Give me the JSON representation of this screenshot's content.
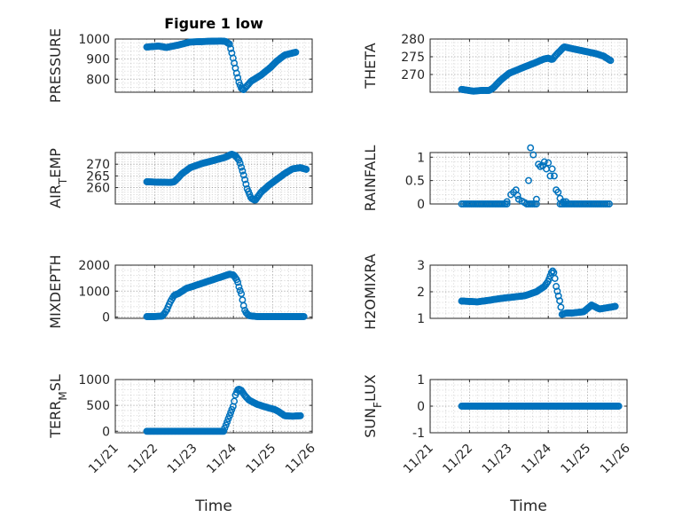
{
  "chart_data": [
    {
      "type": "scatter",
      "title": "Figure 1 low",
      "ylabel": "PRESSURE",
      "ylim": [
        735,
        1000
      ],
      "yticks": [
        800,
        900,
        1000
      ],
      "xlim": [
        0,
        5
      ],
      "keyframes": [
        [
          0.8,
          960
        ],
        [
          1.1,
          965
        ],
        [
          1.3,
          958
        ],
        [
          1.6,
          970
        ],
        [
          1.9,
          985
        ],
        [
          2.3,
          988
        ],
        [
          2.7,
          990
        ],
        [
          2.8,
          988
        ],
        [
          2.9,
          975
        ],
        [
          2.96,
          930
        ],
        [
          3.02,
          880
        ],
        [
          3.08,
          830
        ],
        [
          3.14,
          785
        ],
        [
          3.2,
          755
        ],
        [
          3.26,
          748
        ],
        [
          3.45,
          790
        ],
        [
          3.7,
          820
        ],
        [
          3.95,
          860
        ],
        [
          4.1,
          890
        ],
        [
          4.3,
          920
        ],
        [
          4.6,
          935
        ]
      ]
    },
    {
      "type": "scatter",
      "title": "",
      "ylabel": "THETA",
      "ylim": [
        265,
        280
      ],
      "yticks": [
        270,
        275,
        280
      ],
      "xlim": [
        0,
        5
      ],
      "keyframes": [
        [
          0.8,
          265.8
        ],
        [
          1.1,
          265.3
        ],
        [
          1.3,
          265.5
        ],
        [
          1.5,
          265.5
        ],
        [
          1.6,
          266.2
        ],
        [
          1.8,
          268.5
        ],
        [
          2.0,
          270.3
        ],
        [
          2.3,
          271.7
        ],
        [
          2.6,
          273.0
        ],
        [
          2.9,
          274.4
        ],
        [
          3.0,
          274.6
        ],
        [
          3.1,
          274.2
        ],
        [
          3.2,
          275.5
        ],
        [
          3.4,
          277.8
        ],
        [
          3.6,
          277.3
        ],
        [
          3.9,
          276.6
        ],
        [
          4.2,
          275.9
        ],
        [
          4.4,
          275.2
        ],
        [
          4.6,
          273.8
        ]
      ]
    },
    {
      "type": "scatter",
      "title": "",
      "ylabel": "AIR",
      "ylabel_sub": "T",
      "ylabel_rest": "EMP",
      "ylim": [
        253,
        275
      ],
      "yticks": [
        260,
        265,
        270
      ],
      "xlim": [
        0,
        5
      ],
      "keyframes": [
        [
          0.8,
          262.5
        ],
        [
          1.1,
          262.3
        ],
        [
          1.4,
          262.2
        ],
        [
          1.5,
          262.5
        ],
        [
          1.7,
          266
        ],
        [
          1.9,
          268.5
        ],
        [
          2.2,
          270.3
        ],
        [
          2.5,
          271.6
        ],
        [
          2.8,
          273
        ],
        [
          2.95,
          274.3
        ],
        [
          3.05,
          273.7
        ],
        [
          3.15,
          271.5
        ],
        [
          3.25,
          266
        ],
        [
          3.35,
          259.5
        ],
        [
          3.45,
          255.5
        ],
        [
          3.55,
          254.5
        ],
        [
          3.7,
          258
        ],
        [
          3.9,
          261
        ],
        [
          4.1,
          263.5
        ],
        [
          4.3,
          266
        ],
        [
          4.5,
          268
        ],
        [
          4.7,
          268.5
        ],
        [
          4.85,
          267.8
        ]
      ]
    },
    {
      "type": "scatter",
      "title": "",
      "ylabel": "RAINFALL",
      "ylim": [
        0,
        1.1
      ],
      "yticks": [
        0,
        0.5,
        1
      ],
      "xlim": [
        0,
        5
      ],
      "baseline_ranges": [
        [
          0.8,
          1.95
        ],
        [
          2.45,
          2.7
        ],
        [
          3.3,
          4.55
        ]
      ],
      "points": [
        [
          1.95,
          0.05
        ],
        [
          2.05,
          0.2
        ],
        [
          2.12,
          0.25
        ],
        [
          2.18,
          0.3
        ],
        [
          2.22,
          0.18
        ],
        [
          2.25,
          0.1
        ],
        [
          2.33,
          0.06
        ],
        [
          2.4,
          0.03
        ],
        [
          2.5,
          0.5
        ],
        [
          2.55,
          1.2
        ],
        [
          2.62,
          1.05
        ],
        [
          2.7,
          0.1
        ],
        [
          2.75,
          0.85
        ],
        [
          2.8,
          0.8
        ],
        [
          2.86,
          0.82
        ],
        [
          2.9,
          0.9
        ],
        [
          2.95,
          0.75
        ],
        [
          3.0,
          0.88
        ],
        [
          3.05,
          0.6
        ],
        [
          3.1,
          0.75
        ],
        [
          3.15,
          0.6
        ],
        [
          3.2,
          0.3
        ],
        [
          3.25,
          0.25
        ],
        [
          3.3,
          0.12
        ],
        [
          3.38,
          0.05
        ],
        [
          3.45,
          0.05
        ]
      ]
    },
    {
      "type": "scatter",
      "title": "",
      "ylabel": "MIXDEPTH",
      "ylim": [
        -50,
        2000
      ],
      "yticks": [
        0,
        1000,
        2000
      ],
      "xlim": [
        0,
        5
      ],
      "keyframes": [
        [
          0.8,
          20
        ],
        [
          1.0,
          20
        ],
        [
          1.2,
          40
        ],
        [
          1.3,
          250
        ],
        [
          1.4,
          600
        ],
        [
          1.5,
          850
        ],
        [
          1.6,
          900
        ],
        [
          1.8,
          1100
        ],
        [
          2.1,
          1250
        ],
        [
          2.4,
          1400
        ],
        [
          2.7,
          1550
        ],
        [
          2.9,
          1650
        ],
        [
          3.0,
          1620
        ],
        [
          3.1,
          1400
        ],
        [
          3.15,
          1100
        ],
        [
          3.2,
          900
        ],
        [
          3.25,
          500
        ],
        [
          3.3,
          200
        ],
        [
          3.4,
          50
        ],
        [
          3.6,
          20
        ],
        [
          4.8,
          20
        ]
      ]
    },
    {
      "type": "scatter",
      "title": "",
      "ylabel": "H2OMIXRA",
      "ylim": [
        1.0,
        3.0
      ],
      "yticks": [
        1,
        2,
        3
      ],
      "xlim": [
        0,
        5
      ],
      "keyframes": [
        [
          0.8,
          1.65
        ],
        [
          1.2,
          1.62
        ],
        [
          1.5,
          1.68
        ],
        [
          1.8,
          1.75
        ],
        [
          2.1,
          1.8
        ],
        [
          2.4,
          1.85
        ],
        [
          2.7,
          2.0
        ],
        [
          2.9,
          2.2
        ],
        [
          3.0,
          2.4
        ],
        [
          3.1,
          2.8
        ],
        [
          3.15,
          2.7
        ],
        [
          3.2,
          2.2
        ],
        [
          3.3,
          1.6
        ],
        [
          3.35,
          1.15
        ],
        [
          3.45,
          1.2
        ],
        [
          3.6,
          1.2
        ],
        [
          3.9,
          1.25
        ],
        [
          4.1,
          1.5
        ],
        [
          4.3,
          1.35
        ],
        [
          4.5,
          1.4
        ],
        [
          4.7,
          1.45
        ]
      ]
    },
    {
      "type": "scatter",
      "title": "",
      "ylabel": "TERR",
      "ylabel_sub": "M",
      "ylabel_rest": "SL",
      "ylim": [
        -30,
        1000
      ],
      "yticks": [
        0,
        500,
        1000
      ],
      "xlim": [
        0,
        5
      ],
      "keyframes": [
        [
          0.8,
          0
        ],
        [
          2.6,
          0
        ],
        [
          2.75,
          0
        ],
        [
          2.8,
          100
        ],
        [
          2.9,
          300
        ],
        [
          3.0,
          500
        ],
        [
          3.05,
          700
        ],
        [
          3.12,
          820
        ],
        [
          3.2,
          790
        ],
        [
          3.3,
          680
        ],
        [
          3.4,
          600
        ],
        [
          3.6,
          520
        ],
        [
          3.9,
          450
        ],
        [
          4.05,
          420
        ],
        [
          4.15,
          380
        ],
        [
          4.3,
          300
        ],
        [
          4.5,
          290
        ],
        [
          4.7,
          300
        ]
      ]
    },
    {
      "type": "scatter",
      "title": "",
      "ylabel": "SUN",
      "ylabel_sub": "F",
      "ylabel_rest": "LUX",
      "ylim": [
        -1,
        1
      ],
      "yticks": [
        -1,
        0,
        1
      ],
      "xlim": [
        0,
        5
      ],
      "keyframes": [
        [
          0.8,
          0
        ],
        [
          4.8,
          0
        ]
      ]
    }
  ],
  "axes": {
    "xlabel": "Time",
    "xticks": [
      "11/21",
      "11/22",
      "11/23",
      "11/24",
      "11/25",
      "11/26"
    ]
  }
}
